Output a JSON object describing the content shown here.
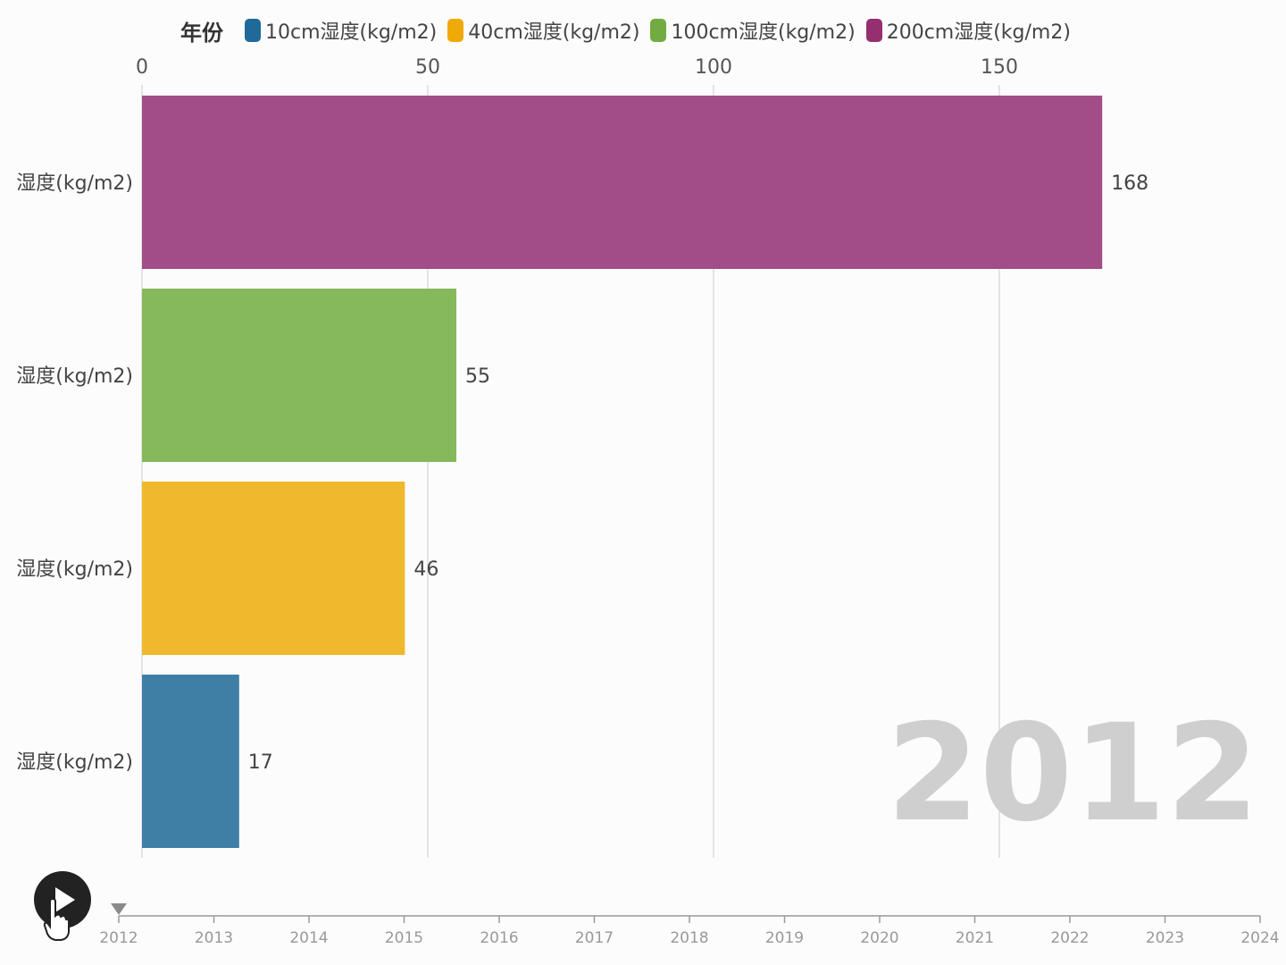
{
  "chart_data": {
    "type": "bar",
    "orientation": "horizontal",
    "legend_title": "年份",
    "categories": [
      "200cm湿度(kg/m2)",
      "100cm湿度(kg/m2)",
      "40cm湿度(kg/m2)",
      "10cm湿度(kg/m2)"
    ],
    "category_labels_visible": [
      "湿度(kg/m2)",
      "湿度(kg/m2)",
      "湿度(kg/m2)",
      "湿度(kg/m2)"
    ],
    "values": [
      168,
      55,
      46,
      17
    ],
    "value_labels": [
      "168",
      "55",
      "46",
      "17"
    ],
    "bar_colors": [
      "#a24d87",
      "#86b85c",
      "#f0b82c",
      "#3f7fa6"
    ],
    "legend": [
      {
        "name": "10cm湿度(kg/m2)",
        "color": "#1f6a99"
      },
      {
        "name": "40cm湿度(kg/m2)",
        "color": "#efaa08"
      },
      {
        "name": "100cm湿度(kg/m2)",
        "color": "#72ab41"
      },
      {
        "name": "200cm湿度(kg/m2)",
        "color": "#952f6f"
      }
    ],
    "x_ticks": [
      0,
      50,
      100,
      150
    ],
    "x_tick_labels": [
      "0",
      "50",
      "100",
      "150"
    ],
    "xlim": [
      0,
      175
    ],
    "grid": true,
    "axis_position": "top",
    "current_year_label": "2012"
  },
  "timeline": {
    "years": [
      "2012",
      "2013",
      "2014",
      "2015",
      "2016",
      "2017",
      "2018",
      "2019",
      "2020",
      "2021",
      "2022",
      "2023",
      "2024"
    ],
    "current_index": 0
  },
  "controls": {
    "play_icon": "play-icon",
    "cursor_icon": "hand-pointer-icon"
  }
}
